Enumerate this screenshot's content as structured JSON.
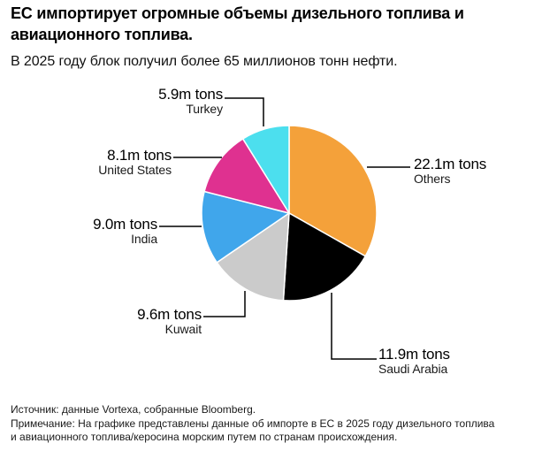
{
  "chart_data": {
    "type": "pie",
    "title": "ЕС импортирует огромные объемы дизельного топлива и авиационного топлива.",
    "subtitle": "В 2025 году блок получил более 65 миллионов тонн нефти.",
    "unit": "m tons",
    "direction": "clockwise",
    "start_angle_deg": 0,
    "slices": [
      {
        "label": "Others",
        "value": 22.1,
        "value_label": "22.1m tons",
        "color": "#F4A13A"
      },
      {
        "label": "Saudi Arabia",
        "value": 11.9,
        "value_label": "11.9m tons",
        "color": "#000000"
      },
      {
        "label": "Kuwait",
        "value": 9.6,
        "value_label": "9.6m tons",
        "color": "#CBCBCB"
      },
      {
        "label": "India",
        "value": 9.0,
        "value_label": "9.0m tons",
        "color": "#40A6EB"
      },
      {
        "label": "United States",
        "value": 8.1,
        "value_label": "8.1m tons",
        "color": "#DF3190"
      },
      {
        "label": "Turkey",
        "value": 5.9,
        "value_label": "5.9m tons",
        "color": "#4CDFEE"
      }
    ],
    "source": "Источник: данные Vortexa, собранные Bloomberg.",
    "note": "Примечание: На графике представлены данные об импорте в ЕС в 2025 году дизельного топлива и авиационного топлива/керосина морским путем по странам происхождения."
  },
  "styles": {
    "background": "#FFFFFF",
    "callout_color": "#000000",
    "slice_stroke": "#FFFFFF"
  }
}
